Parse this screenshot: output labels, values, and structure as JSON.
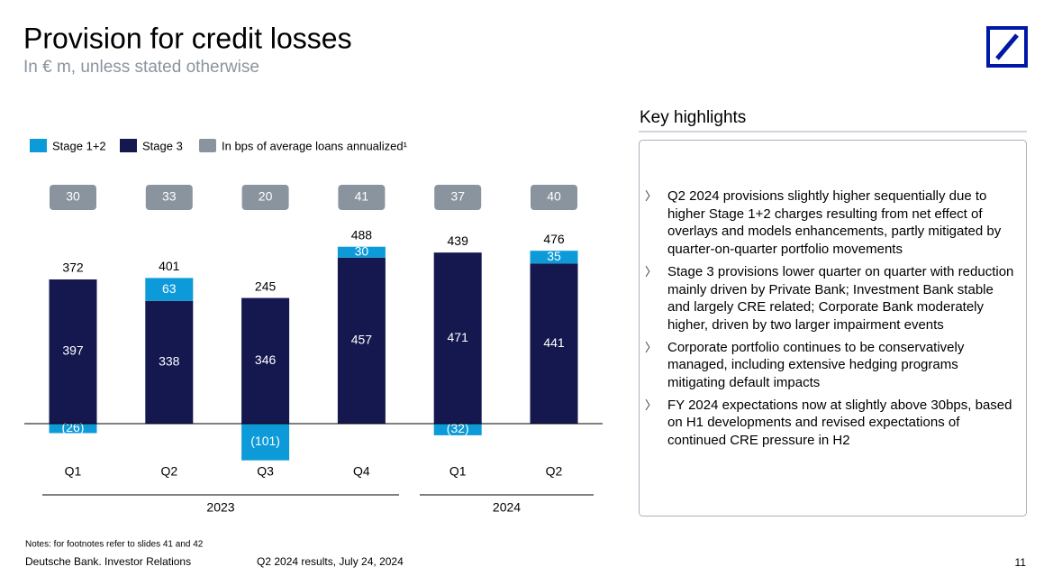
{
  "header": {
    "title": "Provision for credit losses",
    "subtitle": "In € m, unless stated otherwise"
  },
  "chart_data": {
    "type": "bar",
    "stacked": true,
    "categories": [
      "Q1",
      "Q2",
      "Q3",
      "Q4",
      "Q1",
      "Q2"
    ],
    "groups": [
      "2023",
      "2024"
    ],
    "series": [
      {
        "name": "Stage 1+2",
        "color": "#0d9ad8",
        "values": [
          -26,
          63,
          -101,
          30,
          -32,
          35
        ],
        "value_labels": [
          "(26)",
          "63",
          "(101)",
          "30",
          "(32)",
          "35"
        ]
      },
      {
        "name": "Stage 3",
        "color": "#14184f",
        "values": [
          397,
          338,
          346,
          457,
          471,
          441
        ]
      }
    ],
    "totals": [
      372,
      401,
      245,
      488,
      439,
      476
    ],
    "bps": {
      "name": "In bps of average loans annualized¹",
      "color": "#8a949f",
      "values": [
        30,
        33,
        20,
        41,
        37,
        40
      ]
    }
  },
  "highlights": {
    "title": "Key highlights",
    "bullets": [
      "Q2 2024 provisions slightly higher sequentially due to higher Stage 1+2 charges resulting from net effect of overlays and models enhancements, partly mitigated by quarter-on-quarter portfolio movements",
      "Stage 3 provisions lower quarter on quarter with reduction mainly driven by Private Bank; Investment Bank stable and largely CRE related; Corporate Bank moderately higher, driven by two larger impairment events",
      "Corporate portfolio continues to be conservatively managed, including extensive hedging programs mitigating default impacts",
      "FY 2024 expectations now at slightly above 30bps, based on H1 developments and revised expectations of continued CRE pressure in H2"
    ]
  },
  "footer": {
    "notes": "Notes: for footnotes refer to slides 41 and 42",
    "source": "Deutsche Bank. Investor Relations",
    "event": "Q2 2024 results, July 24, 2024",
    "page": "11"
  }
}
